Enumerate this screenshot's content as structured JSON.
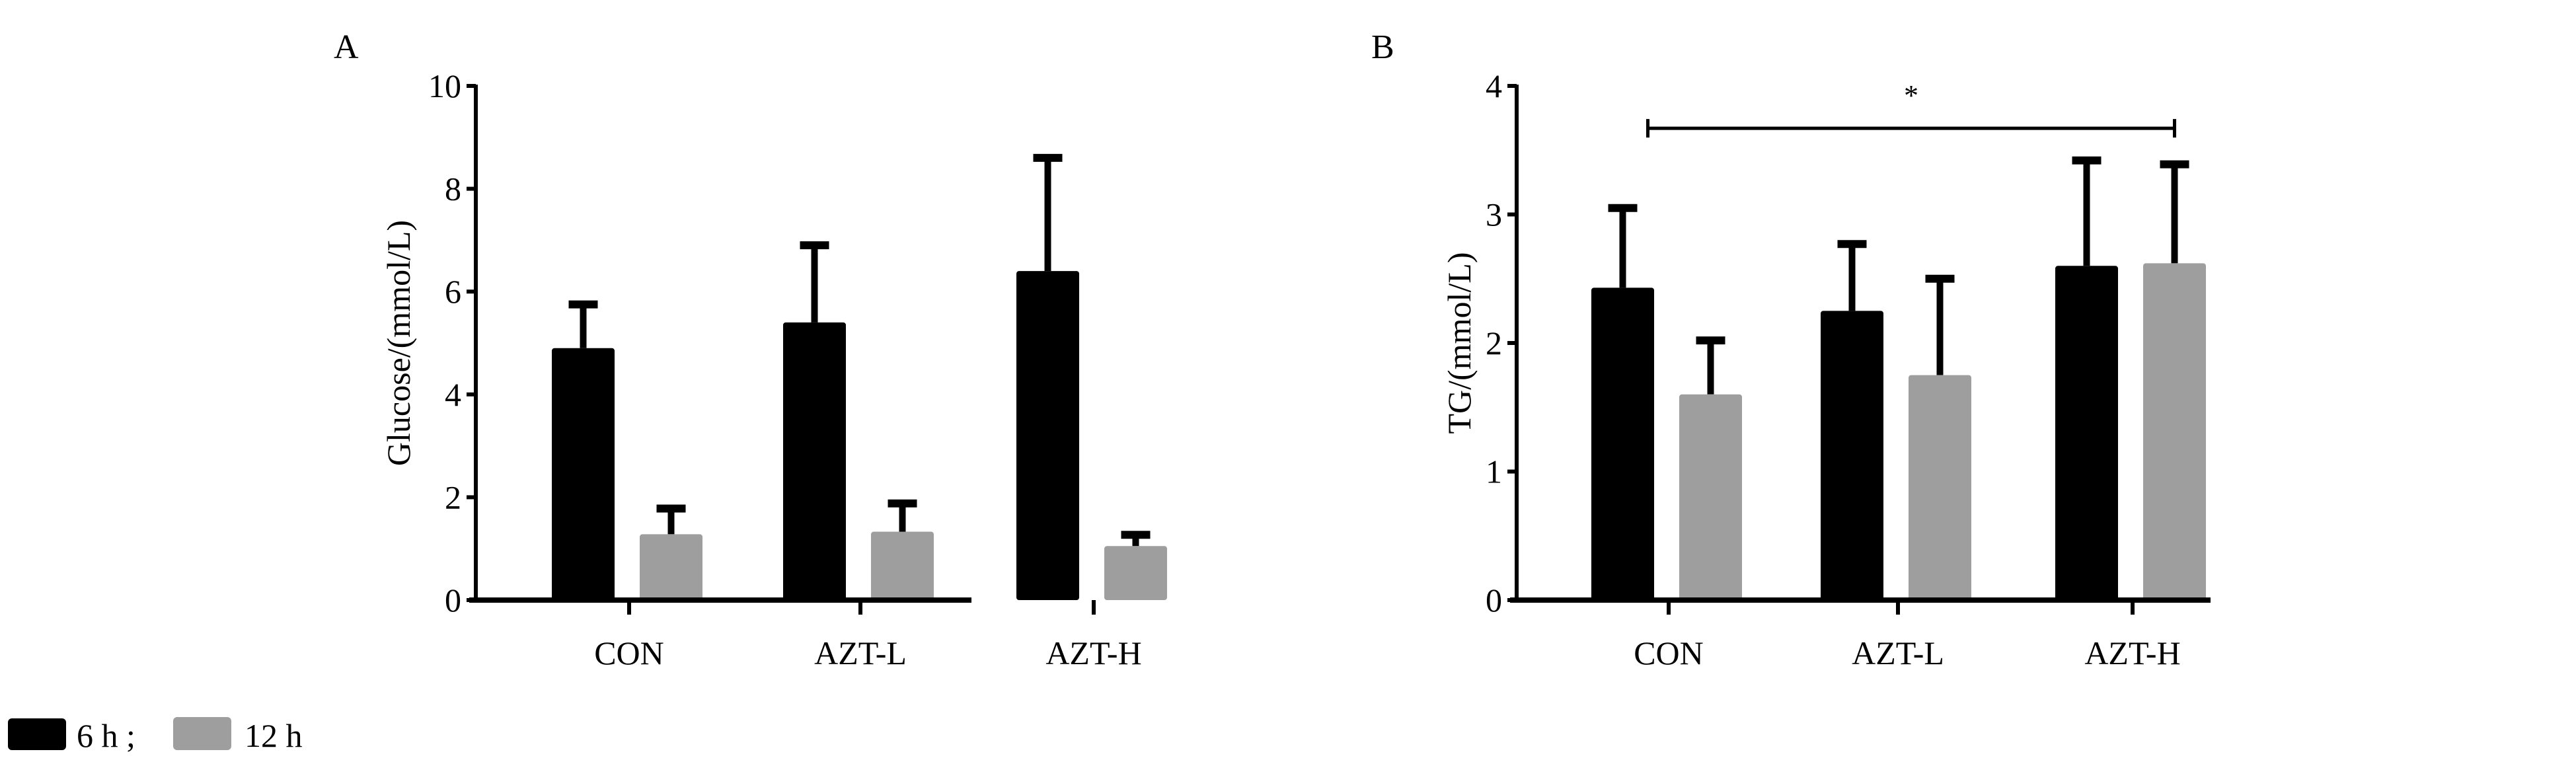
{
  "chart_data": [
    {
      "type": "bar",
      "panel_label": "A",
      "title": "",
      "xlabel": "",
      "ylabel": "Glucose/(mmol/L)",
      "ylim": [
        0,
        10
      ],
      "yticks": [
        "0",
        "2",
        "4",
        "6",
        "8",
        "10"
      ],
      "categories": [
        "CON",
        "AZT-L",
        "AZT-H"
      ],
      "series": [
        {
          "name": "6 h",
          "color": "#000000",
          "values": [
            4.9,
            5.4,
            6.4
          ],
          "error": [
            0.85,
            1.5,
            2.2
          ]
        },
        {
          "name": "12 h",
          "color": "#9e9e9e",
          "values": [
            1.28,
            1.33,
            1.05
          ],
          "error": [
            0.5,
            0.55,
            0.22
          ]
        }
      ],
      "annotations": []
    },
    {
      "type": "bar",
      "panel_label": "B",
      "title": "",
      "xlabel": "",
      "ylabel": "TG/(mmol/L)",
      "ylim": [
        0,
        4
      ],
      "yticks": [
        "0",
        "1",
        "2",
        "3",
        "4"
      ],
      "categories": [
        "CON",
        "AZT-L",
        "AZT-H"
      ],
      "series": [
        {
          "name": "6 h",
          "color": "#000000",
          "values": [
            2.43,
            2.25,
            2.6
          ],
          "error": [
            0.62,
            0.52,
            0.82
          ]
        },
        {
          "name": "12 h",
          "color": "#9e9e9e",
          "values": [
            1.6,
            1.75,
            2.62
          ],
          "error": [
            0.42,
            0.75,
            0.77
          ]
        }
      ],
      "annotations": [
        {
          "type": "significance-bracket",
          "from": "CON",
          "to": "AZT-H",
          "level": 3.67,
          "text": "*"
        }
      ]
    }
  ],
  "legend": {
    "placement": "bottom-left",
    "items": [
      {
        "label": "6 h ;",
        "color": "#000000"
      },
      {
        "label": "12 h",
        "color": "#9e9e9e"
      }
    ]
  }
}
